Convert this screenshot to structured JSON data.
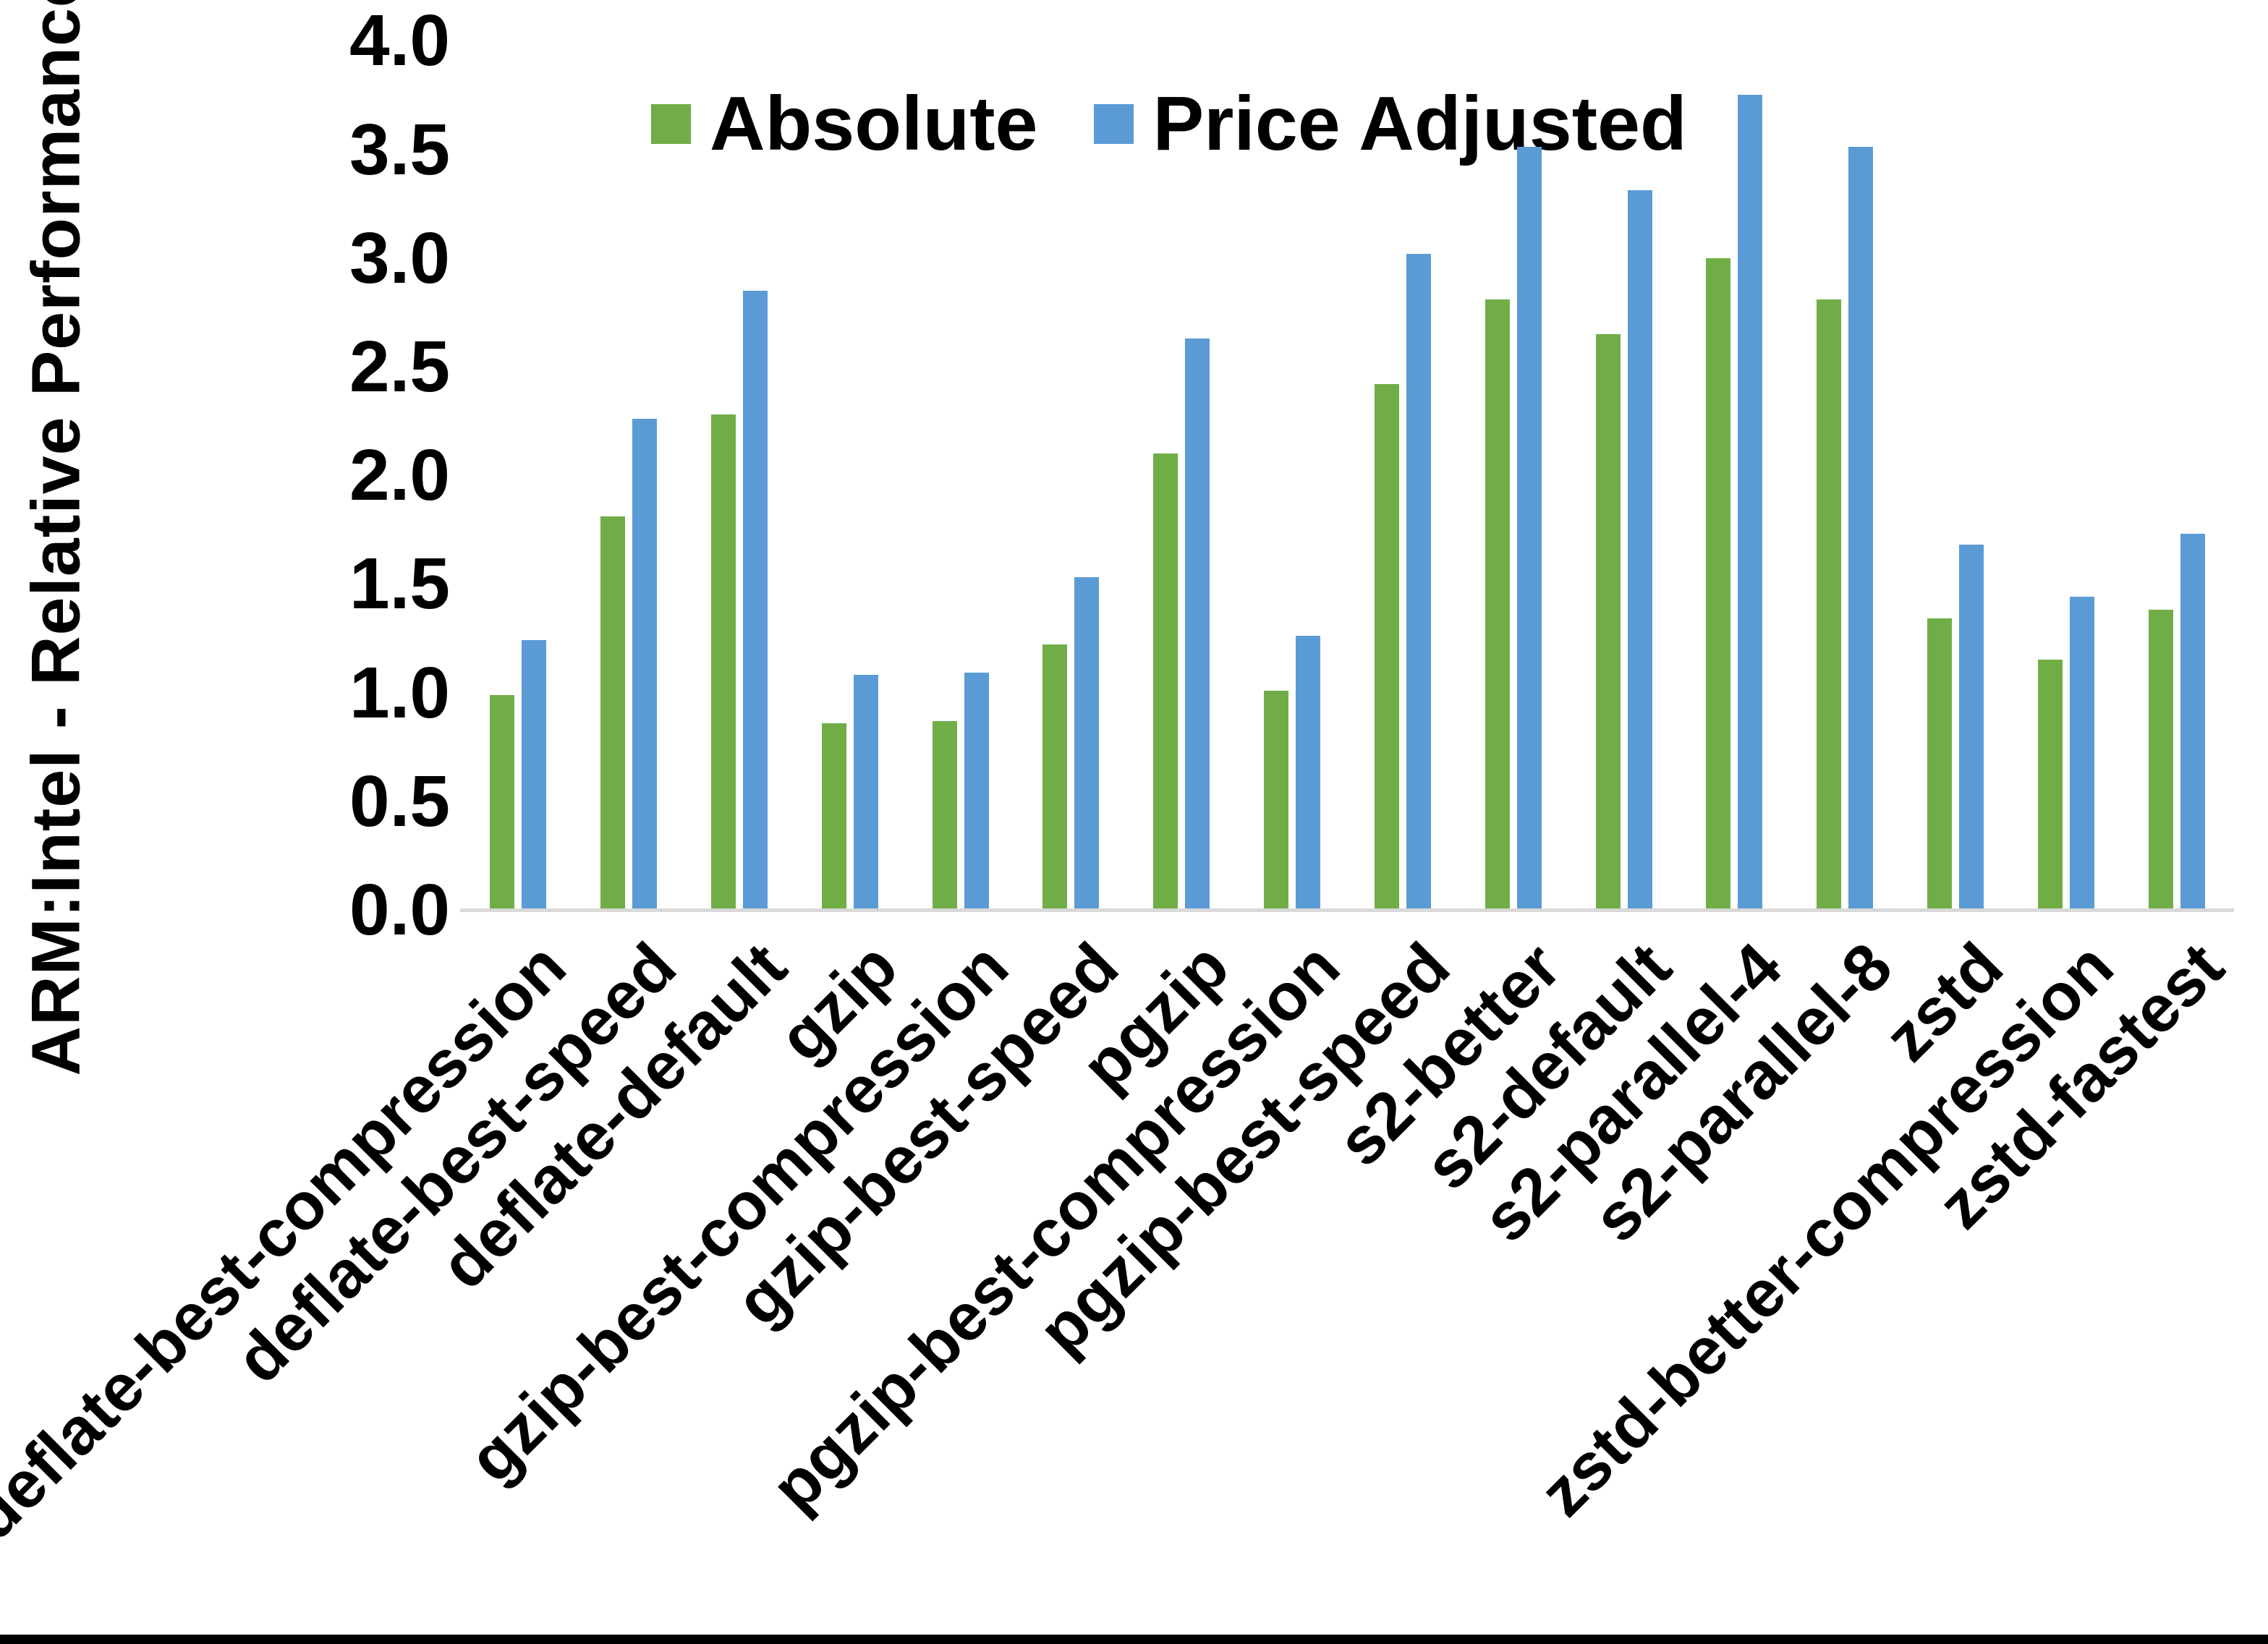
{
  "chart_data": {
    "type": "bar",
    "title": "",
    "xlabel": "",
    "ylabel": "ARM:Intel - Relative Performance",
    "ylim": [
      0.0,
      4.0
    ],
    "ytick_step": 0.5,
    "ytick_labels": [
      "0.0",
      "0.5",
      "1.0",
      "1.5",
      "2.0",
      "2.5",
      "3.0",
      "3.5",
      "4.0"
    ],
    "grid": false,
    "legend_position": "top-center",
    "categories": [
      "deflate-best-compression",
      "deflate-best-speed",
      "deflate-default",
      "gzip",
      "gzip-best-compression",
      "gzip-best-speed",
      "pgzip",
      "pgzip-best-compression",
      "pgzip-best-speed",
      "s2-better",
      "s2-default",
      "s2-parallel-4",
      "s2-parallel-8",
      "zstd",
      "zstd-better-compression",
      "zstd-fastest"
    ],
    "series": [
      {
        "name": "Absolute",
        "color": "#70AD47",
        "values": [
          0.99,
          1.81,
          2.28,
          0.86,
          0.87,
          1.22,
          2.1,
          1.01,
          2.42,
          2.81,
          2.65,
          3.0,
          2.81,
          1.34,
          1.15,
          1.38
        ]
      },
      {
        "name": "Price Adjusted",
        "color": "#5B9BD5",
        "values": [
          1.24,
          2.26,
          2.85,
          1.08,
          1.09,
          1.53,
          2.63,
          1.26,
          3.02,
          3.51,
          3.31,
          3.75,
          3.51,
          1.68,
          1.44,
          1.73
        ]
      }
    ],
    "axis_line_color": "#D9D9D9",
    "text_color": "#000000",
    "background_color": "#FFFFFF",
    "bottom_border_color": "#000000"
  }
}
